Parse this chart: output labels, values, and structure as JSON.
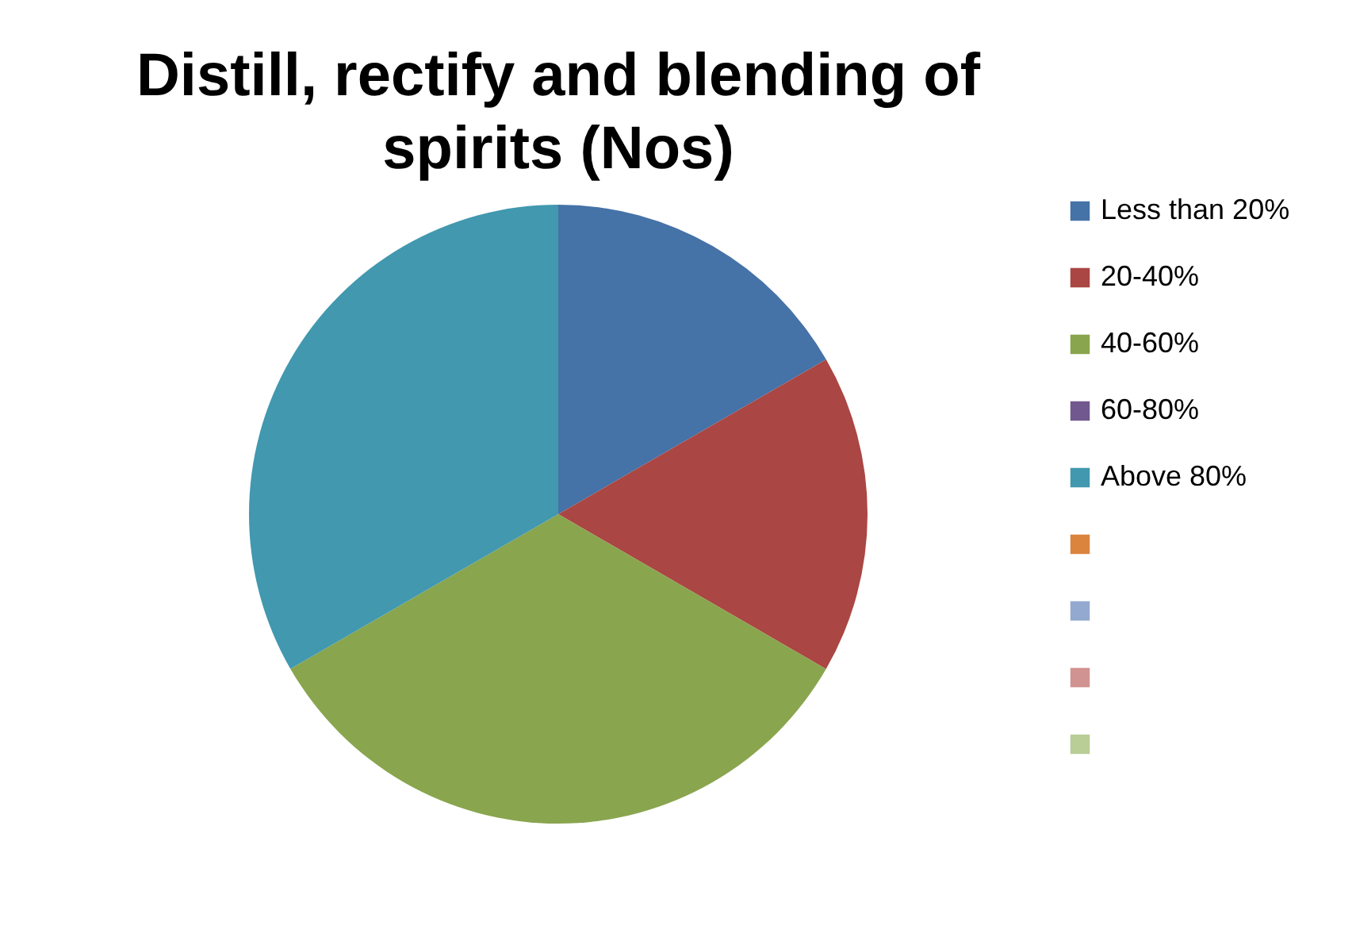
{
  "chart_data": {
    "type": "pie",
    "title": "Distill, rectify and blending of spirits (Nos)",
    "categories": [
      "Less than 20%",
      "20-40%",
      "40-60%",
      "60-80%",
      "Above 80%",
      null,
      null,
      null,
      null
    ],
    "values": [
      16.67,
      16.67,
      33.33,
      0,
      33.33,
      0,
      0,
      0,
      0
    ],
    "colors": [
      "#4572a7",
      "#aa4643",
      "#89a54e",
      "#71588f",
      "#4198af",
      "#db843d",
      "#93a9cf",
      "#d19392",
      "#b9cd96"
    ],
    "legend": "right"
  }
}
